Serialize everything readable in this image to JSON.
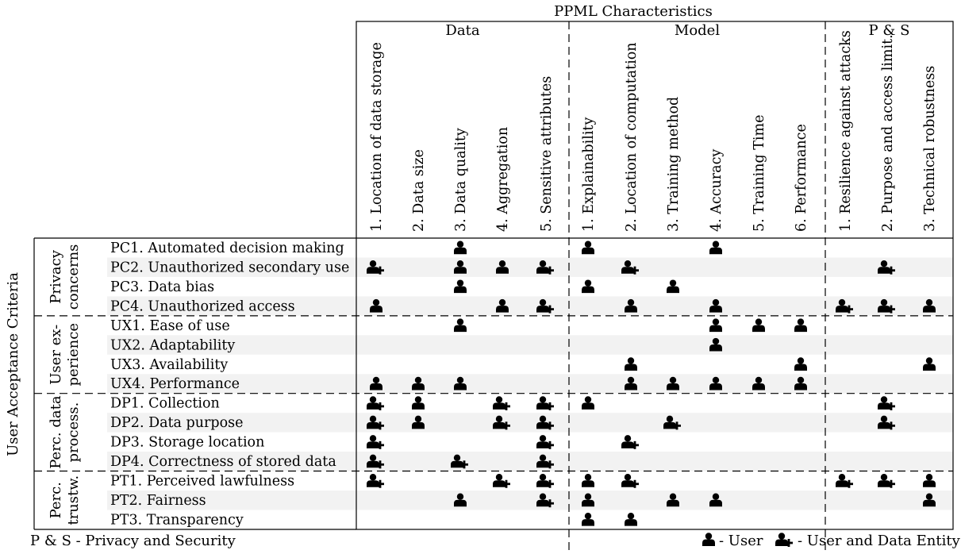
{
  "title": "PPML Characteristics",
  "left_axis_label": "User Acceptance Criteria",
  "groups": [
    {
      "label": "Data",
      "columns": [
        "1. Location of data storage",
        "2. Data size",
        "3. Data quality",
        "4. Aggregation",
        "5. Sensitive attributes"
      ]
    },
    {
      "label": "Model",
      "columns": [
        "1. Explainability",
        "2. Location of computation",
        "3. Training method",
        "4. Accuracy",
        "5. Training Time",
        "6. Performance"
      ]
    },
    {
      "label": "P & S",
      "columns": [
        "1. Resilience against attacks",
        "2. Purpose and access limit.",
        "3. Technical robustness"
      ]
    }
  ],
  "row_groups": [
    {
      "label_lines": [
        "Privacy",
        "concerns"
      ],
      "rows": [
        "PC1. Automated decision making",
        "PC2. Unauthorized secondary use",
        "PC3. Data bias",
        "PC4. Unauthorized access"
      ]
    },
    {
      "label_lines": [
        "User ex-",
        "perience"
      ],
      "rows": [
        "UX1. Ease of use",
        "UX2. Adaptability",
        "UX3. Availability",
        "UX4. Performance"
      ]
    },
    {
      "label_lines": [
        "Perc. data",
        "process."
      ],
      "rows": [
        "DP1. Collection",
        "DP2. Data purpose",
        "DP3. Storage location",
        "DP4. Correctness of stored data"
      ]
    },
    {
      "label_lines": [
        "Perc.",
        "trustw."
      ],
      "rows": [
        "PT1. Perceived lawfulness",
        "PT2. Fairness",
        "PT3. Transparency"
      ]
    }
  ],
  "matrix": [
    [
      0,
      0,
      1,
      0,
      0,
      1,
      0,
      0,
      1,
      0,
      0,
      0,
      0,
      0
    ],
    [
      2,
      0,
      1,
      1,
      2,
      0,
      2,
      0,
      0,
      0,
      0,
      0,
      2,
      0
    ],
    [
      0,
      0,
      1,
      0,
      0,
      1,
      0,
      1,
      0,
      0,
      0,
      0,
      0,
      0
    ],
    [
      1,
      0,
      0,
      1,
      2,
      0,
      1,
      0,
      1,
      0,
      0,
      2,
      2,
      1
    ],
    [
      0,
      0,
      1,
      0,
      0,
      0,
      0,
      0,
      1,
      1,
      1,
      0,
      0,
      0
    ],
    [
      0,
      0,
      0,
      0,
      0,
      0,
      0,
      0,
      1,
      0,
      0,
      0,
      0,
      0
    ],
    [
      0,
      0,
      0,
      0,
      0,
      0,
      1,
      0,
      0,
      0,
      1,
      0,
      0,
      1
    ],
    [
      1,
      1,
      1,
      0,
      0,
      0,
      1,
      1,
      1,
      1,
      1,
      0,
      0,
      0
    ],
    [
      2,
      1,
      0,
      2,
      2,
      1,
      0,
      0,
      0,
      0,
      0,
      0,
      2,
      0
    ],
    [
      2,
      1,
      0,
      2,
      2,
      0,
      0,
      2,
      0,
      0,
      0,
      0,
      2,
      0
    ],
    [
      2,
      0,
      0,
      0,
      2,
      0,
      2,
      0,
      0,
      0,
      0,
      0,
      0,
      0
    ],
    [
      2,
      0,
      2,
      0,
      2,
      0,
      0,
      0,
      0,
      0,
      0,
      0,
      0,
      0
    ],
    [
      2,
      0,
      0,
      2,
      2,
      1,
      2,
      0,
      0,
      0,
      0,
      2,
      2,
      1
    ],
    [
      0,
      0,
      1,
      0,
      2,
      1,
      0,
      1,
      1,
      0,
      0,
      0,
      0,
      1
    ],
    [
      0,
      0,
      0,
      0,
      0,
      1,
      1,
      0,
      0,
      0,
      0,
      0,
      0,
      0
    ]
  ],
  "footnote": "P & S - Privacy and Security",
  "legend": {
    "user": "- User",
    "user_data": "- User and Data Entity"
  }
}
